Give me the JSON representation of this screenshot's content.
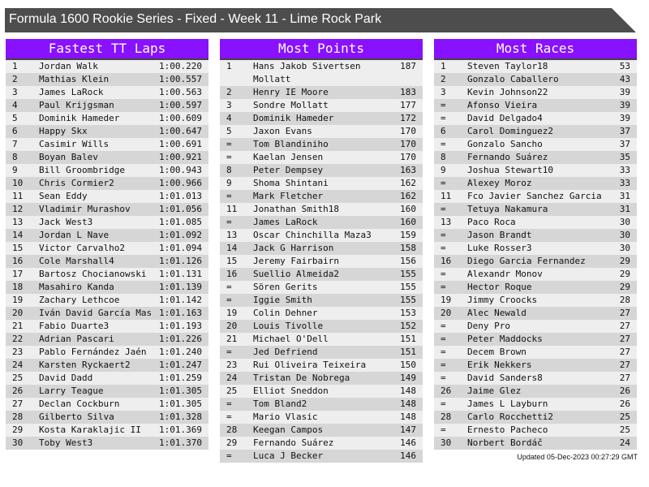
{
  "title": "Formula 1600 Rookie Series - Fixed - Week 11 - Lime Rock Park",
  "updated": "Updated 05-Dec-2023 00:27:29 GMT",
  "colors": {
    "banner": "#4d4d4d",
    "panel_header": "#8811ff",
    "row_light": "#eeeeee",
    "row_dark": "#d6d6d6"
  },
  "tables": [
    {
      "title": "Fastest TT Laps",
      "rows": [
        [
          "1",
          "Jordan Walk",
          "1:00.220"
        ],
        [
          "2",
          "Mathias Klein",
          "1:00.557"
        ],
        [
          "3",
          "James LaRock",
          "1:00.563"
        ],
        [
          "4",
          "Paul Krijgsman",
          "1:00.597"
        ],
        [
          "5",
          "Dominik Hameder",
          "1:00.609"
        ],
        [
          "6",
          "Happy Skx",
          "1:00.647"
        ],
        [
          "7",
          "Casimir Wills",
          "1:00.691"
        ],
        [
          "8",
          "Boyan Balev",
          "1:00.921"
        ],
        [
          "9",
          "Bill Groombridge",
          "1:00.943"
        ],
        [
          "10",
          "Chris Cormier2",
          "1:00.966"
        ],
        [
          "11",
          "Sean Eddy",
          "1:01.013"
        ],
        [
          "12",
          "Vladimir Murashov",
          "1:01.056"
        ],
        [
          "13",
          "Jack West3",
          "1:01.085"
        ],
        [
          "14",
          "Jordan L Nave",
          "1:01.092"
        ],
        [
          "15",
          "Victor Carvalho2",
          "1:01.094"
        ],
        [
          "16",
          "Cole Marshall4",
          "1:01.126"
        ],
        [
          "17",
          "Bartosz Chocianowski",
          "1:01.131"
        ],
        [
          "18",
          "Masahiro Kanda",
          "1:01.139"
        ],
        [
          "19",
          "Zachary Lethcoe",
          "1:01.142"
        ],
        [
          "20",
          "Iván David García Mas",
          "1:01.163"
        ],
        [
          "21",
          "Fabio Duarte3",
          "1:01.193"
        ],
        [
          "22",
          "Adrian Pascari",
          "1:01.226"
        ],
        [
          "23",
          "Pablo Fernández Jaén",
          "1:01.240"
        ],
        [
          "24",
          "Karsten Ryckaert2",
          "1:01.247"
        ],
        [
          "25",
          "David Dadd",
          "1:01.259"
        ],
        [
          "26",
          "Larry Teague",
          "1:01.305"
        ],
        [
          "27",
          "Declan Cockburn",
          "1:01.305"
        ],
        [
          "28",
          "Gilberto Silva",
          "1:01.328"
        ],
        [
          "29",
          "Kosta Karaklajic II",
          "1:01.369"
        ],
        [
          "30",
          "Toby West3",
          "1:01.370"
        ]
      ]
    },
    {
      "title": "Most Points",
      "rows": [
        [
          "1",
          "Hans Jakob Sivertsen Mollatt",
          "187"
        ],
        [
          "2",
          "Henry IE Moore",
          "183"
        ],
        [
          "3",
          "Sondre Mollatt",
          "177"
        ],
        [
          "4",
          "Dominik Hameder",
          "172"
        ],
        [
          "5",
          "Jaxon Evans",
          "170"
        ],
        [
          "=",
          "Tom Blandiniho",
          "170"
        ],
        [
          "=",
          "Kaelan Jensen",
          "170"
        ],
        [
          "8",
          "Peter Dempsey",
          "163"
        ],
        [
          "9",
          "Shoma Shintani",
          "162"
        ],
        [
          "=",
          "Mark Fletcher",
          "162"
        ],
        [
          "11",
          "Jonathan Smith18",
          "160"
        ],
        [
          "=",
          "James LaRock",
          "160"
        ],
        [
          "13",
          "Oscar Chinchilla Maza3",
          "159"
        ],
        [
          "14",
          "Jack G Harrison",
          "158"
        ],
        [
          "15",
          "Jeremy Fairbairn",
          "156"
        ],
        [
          "16",
          "Suellio Almeida2",
          "155"
        ],
        [
          "=",
          "Sören Gerits",
          "155"
        ],
        [
          "=",
          "Iggie Smith",
          "155"
        ],
        [
          "19",
          "Colin Dehner",
          "153"
        ],
        [
          "20",
          "Louis Tivolle",
          "152"
        ],
        [
          "21",
          "Michael O'Dell",
          "151"
        ],
        [
          "=",
          "Jed Defriend",
          "151"
        ],
        [
          "23",
          "Rui Oliveira Teixeira",
          "150"
        ],
        [
          "24",
          "Tristan De Nobrega",
          "149"
        ],
        [
          "25",
          "Elliot Sneddon",
          "148"
        ],
        [
          "=",
          "Tom Bland2",
          "148"
        ],
        [
          "=",
          "Mario Vlasic",
          "148"
        ],
        [
          "28",
          "Keegan Campos",
          "147"
        ],
        [
          "29",
          "Fernando Suárez",
          "146"
        ],
        [
          "=",
          "Luca J Becker",
          "146"
        ]
      ]
    },
    {
      "title": "Most Races",
      "rows": [
        [
          "1",
          "Steven Taylor18",
          "53"
        ],
        [
          "2",
          "Gonzalo Caballero",
          "43"
        ],
        [
          "3",
          "Kevin Johnson22",
          "39"
        ],
        [
          "=",
          "Afonso Vieira",
          "39"
        ],
        [
          "=",
          "David Delgado4",
          "39"
        ],
        [
          "6",
          "Carol Dominguez2",
          "37"
        ],
        [
          "=",
          "Gonzalo Sancho",
          "37"
        ],
        [
          "8",
          "Fernando Suárez",
          "35"
        ],
        [
          "9",
          "Joshua Stewart10",
          "33"
        ],
        [
          "=",
          "Alexey Moroz",
          "33"
        ],
        [
          "11",
          "Fco Javier Sanchez Garcia",
          "31"
        ],
        [
          "=",
          "Tetuya Nakamura",
          "31"
        ],
        [
          "13",
          "Paco Roca",
          "30"
        ],
        [
          "=",
          "Jason Brandt",
          "30"
        ],
        [
          "=",
          "Luke Rosser3",
          "30"
        ],
        [
          "16",
          "Diego Garcia Fernandez",
          "29"
        ],
        [
          "=",
          "Alexandr Monov",
          "29"
        ],
        [
          "=",
          "Hector Roque",
          "29"
        ],
        [
          "19",
          "Jimmy Croocks",
          "28"
        ],
        [
          "20",
          "Alec Newald",
          "27"
        ],
        [
          "=",
          "Deny Pro",
          "27"
        ],
        [
          "=",
          "Peter Maddocks",
          "27"
        ],
        [
          "=",
          "Decem Brown",
          "27"
        ],
        [
          "=",
          "Erik Nekkers",
          "27"
        ],
        [
          "=",
          "David Sanders8",
          "27"
        ],
        [
          "26",
          "Jaime Glez",
          "26"
        ],
        [
          "=",
          "James L Layburn",
          "26"
        ],
        [
          "28",
          "Carlo Rocchetti2",
          "25"
        ],
        [
          "=",
          "Ernesto Pacheco",
          "25"
        ],
        [
          "30",
          "Norbert Bordáč",
          "24"
        ]
      ]
    }
  ]
}
